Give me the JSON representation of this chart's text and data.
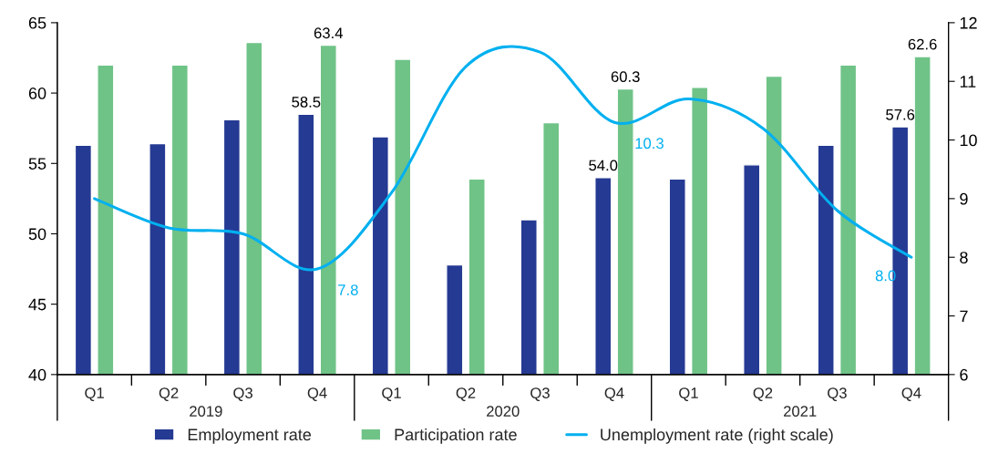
{
  "chart_data": {
    "type": "bar",
    "categories": [
      "Q1",
      "Q2",
      "Q3",
      "Q4",
      "Q1",
      "Q2",
      "Q3",
      "Q4",
      "Q1",
      "Q2",
      "Q3",
      "Q4"
    ],
    "series": [
      {
        "name": "Employment rate",
        "color": "#253a93",
        "values": [
          56.3,
          56.4,
          58.1,
          58.5,
          56.9,
          47.8,
          51.0,
          54.0,
          53.9,
          54.9,
          56.3,
          57.6
        ],
        "value_labels": [
          null,
          null,
          null,
          "58.5",
          null,
          null,
          null,
          "54.0",
          null,
          null,
          null,
          "57.6"
        ]
      },
      {
        "name": "Participation rate",
        "color": "#6fc387",
        "values": [
          62.0,
          62.0,
          63.6,
          63.4,
          62.4,
          53.9,
          57.9,
          60.3,
          60.4,
          61.2,
          62.0,
          62.6
        ],
        "value_labels": [
          null,
          null,
          null,
          "63.4",
          null,
          null,
          null,
          "60.3",
          null,
          null,
          null,
          "62.6"
        ]
      },
      {
        "name": "Unemployment rate (right scale)",
        "color": "#00b0f0",
        "type": "line",
        "axis": "y2",
        "values": [
          9.0,
          8.5,
          8.4,
          7.8,
          9.1,
          11.25,
          11.5,
          10.3,
          10.7,
          10.2,
          8.8,
          8.0
        ],
        "value_labels": [
          null,
          null,
          null,
          "7.8",
          null,
          null,
          null,
          "10.3",
          null,
          null,
          null,
          "8.0"
        ]
      }
    ],
    "annotations": [
      "2019",
      "2020",
      "2021"
    ],
    "ylim": [
      40,
      65
    ],
    "yticks": [
      40,
      45,
      50,
      55,
      60,
      65
    ],
    "y2lim": [
      6,
      12
    ],
    "y2ticks": [
      6,
      7,
      8,
      9,
      10,
      11,
      12
    ],
    "legend": "bottom",
    "grid": false
  }
}
